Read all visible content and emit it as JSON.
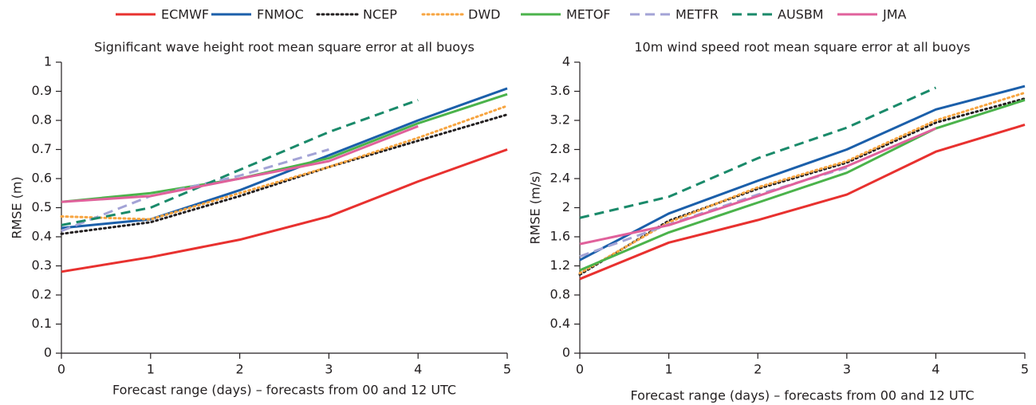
{
  "chart_data": [
    {
      "type": "line",
      "title": "Significant wave height root mean square error at all buoys",
      "x_label": "Forecast range (days) – forecasts from 00 and 12 UTC",
      "y_label": "RMSE (m)",
      "x": [
        0,
        1,
        2,
        3,
        4,
        5
      ],
      "xlim": [
        0,
        5
      ],
      "xticks": [
        0,
        1,
        2,
        3,
        4,
        5
      ],
      "ylim": [
        0,
        1
      ],
      "yticks": [
        0,
        0.1,
        0.2,
        0.3,
        0.4,
        0.5,
        0.6,
        0.7,
        0.8,
        0.9,
        1
      ],
      "series": [
        {
          "name": "ECMWF",
          "color": "#e8312f",
          "style": "solid",
          "values": [
            0.28,
            0.33,
            0.39,
            0.47,
            0.59,
            0.7
          ]
        },
        {
          "name": "FNMOC",
          "color": "#1b5faa",
          "style": "solid",
          "values": [
            0.43,
            0.46,
            0.56,
            0.68,
            0.8,
            0.91
          ]
        },
        {
          "name": "NCEP",
          "color": "#231f20",
          "style": "dotted",
          "values": [
            0.41,
            0.45,
            0.54,
            0.64,
            0.73,
            0.82
          ]
        },
        {
          "name": "DWD",
          "color": "#f7a541",
          "style": "dotted",
          "values": [
            0.47,
            0.46,
            0.55,
            0.64,
            0.74,
            0.85
          ]
        },
        {
          "name": "METOF",
          "color": "#4bb34b",
          "style": "solid",
          "values": [
            0.52,
            0.55,
            0.6,
            0.67,
            0.79,
            0.89
          ]
        },
        {
          "name": "METFR",
          "color": "#a3a3d6",
          "style": "dashed",
          "values": [
            0.42,
            0.54,
            0.61,
            0.7,
            null,
            null
          ]
        },
        {
          "name": "AUSBM",
          "color": "#1a8a6a",
          "style": "dashed",
          "values": [
            0.44,
            0.5,
            0.63,
            0.76,
            0.87,
            null
          ]
        },
        {
          "name": "JMA",
          "color": "#e0619b",
          "style": "solid",
          "values": [
            0.52,
            0.54,
            0.6,
            0.66,
            0.78,
            null
          ]
        }
      ]
    },
    {
      "type": "line",
      "title": "10m wind speed root mean square error at all buoys",
      "x_label": "Forecast range (days) – forecasts from 00 and 12 UTC",
      "y_label": "RMSE (m/s)",
      "x": [
        0,
        1,
        2,
        3,
        4,
        5
      ],
      "xlim": [
        0,
        5
      ],
      "xticks": [
        0,
        1,
        2,
        3,
        4,
        5
      ],
      "ylim": [
        0,
        4
      ],
      "yticks": [
        0,
        0.4,
        0.8,
        1.2,
        1.6,
        2,
        2.4,
        2.8,
        3.2,
        3.6,
        4
      ],
      "series": [
        {
          "name": "ECMWF",
          "color": "#e8312f",
          "style": "solid",
          "values": [
            1.02,
            1.52,
            1.83,
            2.18,
            2.77,
            3.14
          ]
        },
        {
          "name": "FNMOC",
          "color": "#1b5faa",
          "style": "solid",
          "values": [
            1.28,
            1.92,
            2.37,
            2.8,
            3.35,
            3.67
          ]
        },
        {
          "name": "NCEP",
          "color": "#231f20",
          "style": "dotted",
          "values": [
            1.08,
            1.82,
            2.26,
            2.62,
            3.17,
            3.5
          ]
        },
        {
          "name": "DWD",
          "color": "#f7a541",
          "style": "dotted",
          "values": [
            1.1,
            1.8,
            2.28,
            2.64,
            3.2,
            3.58
          ]
        },
        {
          "name": "METOF",
          "color": "#4bb34b",
          "style": "solid",
          "values": [
            1.14,
            1.66,
            2.07,
            2.48,
            3.09,
            3.48
          ]
        },
        {
          "name": "METFR",
          "color": "#a3a3d6",
          "style": "dashed",
          "values": [
            1.33,
            1.77,
            2.18,
            2.55,
            null,
            null
          ]
        },
        {
          "name": "AUSBM",
          "color": "#1a8a6a",
          "style": "dashed",
          "values": [
            1.86,
            2.15,
            2.68,
            3.1,
            3.65,
            null
          ]
        },
        {
          "name": "JMA",
          "color": "#e0619b",
          "style": "solid",
          "values": [
            1.5,
            1.76,
            2.16,
            2.57,
            3.09,
            null
          ]
        }
      ]
    }
  ]
}
